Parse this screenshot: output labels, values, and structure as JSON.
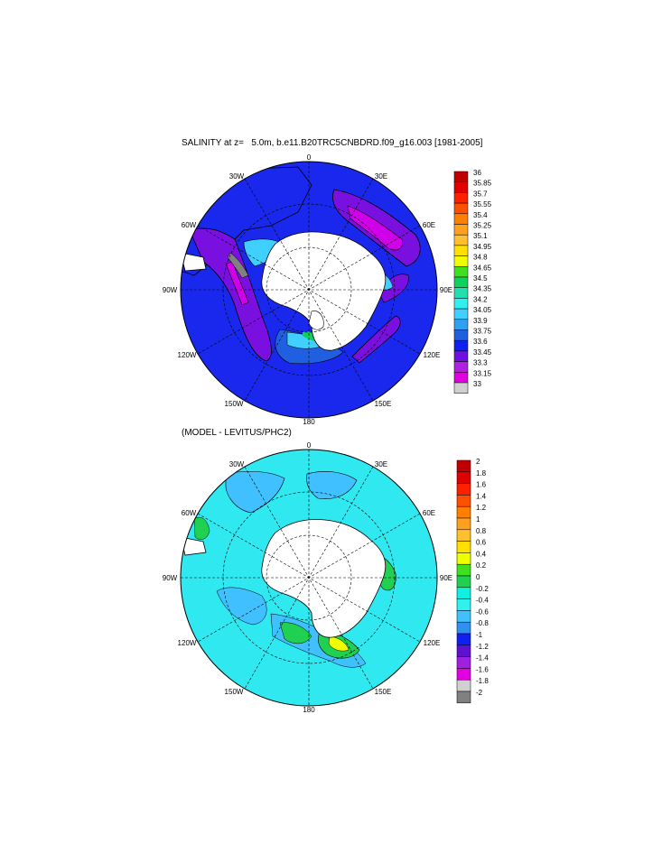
{
  "panels": [
    {
      "title": "SALINITY at z=   5.0m, b.e11.B20TRC5CNBDRD.f09_g16.003 [1981-2005]",
      "map_labels": {
        "lon0": "0",
        "lon30w": "30W",
        "lon30e": "30E",
        "lon60w": "60W",
        "lon60e": "60E",
        "lon90w": "90W",
        "lon90e": "90E",
        "lon120w": "120W",
        "lon120e": "120E",
        "lon150w": "150W",
        "lon150e": "150E",
        "lon180": "180"
      },
      "colorbar": {
        "labels": [
          "36",
          "35.85",
          "35.7",
          "35.55",
          "35.4",
          "35.25",
          "35.1",
          "34.95",
          "34.8",
          "34.65",
          "34.5",
          "34.35",
          "34.2",
          "34.05",
          "33.9",
          "33.75",
          "33.6",
          "33.45",
          "33.3",
          "33.15",
          "33"
        ],
        "colors": [
          "#c00000",
          "#e00000",
          "#ff2000",
          "#ff5000",
          "#ff8000",
          "#ffa020",
          "#ffc030",
          "#ffe000",
          "#f0ff00",
          "#40e020",
          "#10d060",
          "#20e0b0",
          "#30f0f0",
          "#40d0ff",
          "#30a0f0",
          "#2060e0",
          "#1020f0",
          "#7010e0",
          "#b020e0",
          "#e000e0",
          "#d0d0d0",
          "#808080"
        ]
      }
    },
    {
      "title": "(MODEL - LEVITUS/PHC2)",
      "map_labels": {
        "lon0": "0",
        "lon30w": "30W",
        "lon30e": "30E",
        "lon60w": "60W",
        "lon60e": "60E",
        "lon90w": "90W",
        "lon90e": "90E",
        "lon120w": "120W",
        "lon120e": "120E",
        "lon150w": "150W",
        "lon150e": "150E",
        "lon180": "180"
      },
      "colorbar": {
        "labels": [
          "2",
          "1.8",
          "1.6",
          "1.4",
          "1.2",
          "1",
          "0.8",
          "0.6",
          "0.4",
          "0.2",
          "0",
          "-0.2",
          "-0.4",
          "-0.6",
          "-0.8",
          "-1",
          "-1.2",
          "-1.4",
          "-1.6",
          "-1.8",
          "-2"
        ],
        "colors": [
          "#c00000",
          "#e00000",
          "#ff2000",
          "#ff5000",
          "#ff8000",
          "#ffa020",
          "#ffc030",
          "#ffe000",
          "#f0ff00",
          "#40e020",
          "#20d050",
          "#10f0e0",
          "#30f0f0",
          "#40c0ff",
          "#3090f0",
          "#1020f0",
          "#6010d0",
          "#a020e0",
          "#e000e0",
          "#d0d0d0",
          "#808080"
        ]
      }
    }
  ]
}
